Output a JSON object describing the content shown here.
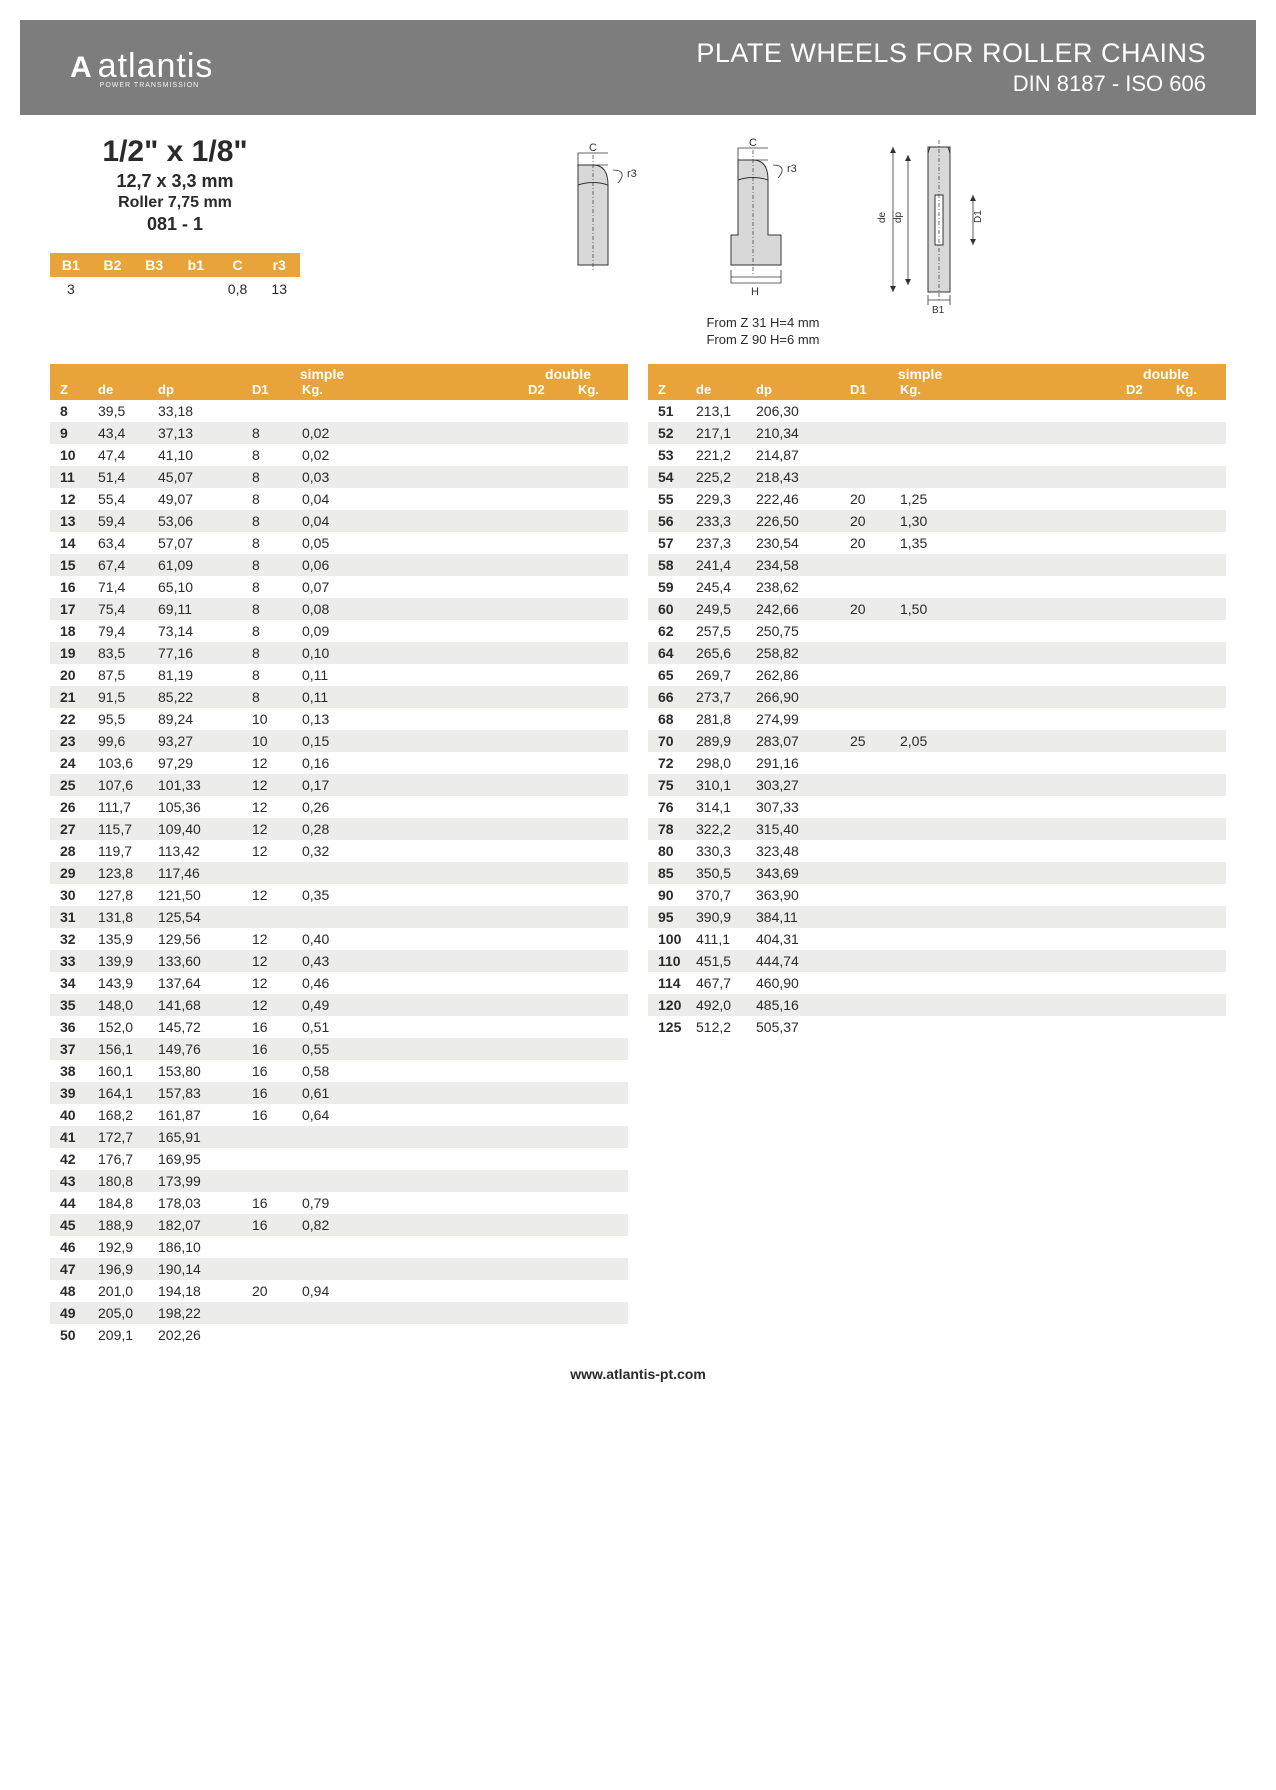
{
  "colors": {
    "header_bg": "#7d7d7d",
    "accent": "#e8a43a",
    "row_alt": "#ececea",
    "text": "#2a2a2a",
    "white": "#ffffff"
  },
  "header": {
    "logo_text": "atlantis",
    "logo_sub": "POWER TRANSMISSION",
    "title_line1": "PLATE WHEELS FOR ROLLER CHAINS",
    "title_line2": "DIN 8187 - ISO 606"
  },
  "spec": {
    "title": "1/2\" x 1/8\"",
    "sub1": "12,7 x 3,3 mm",
    "sub2": "Roller 7,75 mm",
    "sub3": "081 - 1"
  },
  "params": {
    "headers": [
      "B1",
      "B2",
      "B3",
      "b1",
      "C",
      "r3"
    ],
    "values": [
      "3",
      "",
      "",
      "",
      "0,8",
      "13"
    ]
  },
  "diagram_labels": {
    "C": "C",
    "r3": "r3",
    "H": "H",
    "de": "de",
    "dp": "dp",
    "D1": "D1",
    "B1": "B1"
  },
  "diagram_notes": {
    "note1": "From Z 31 H=4 mm",
    "note2": "From Z 90 H=6 mm"
  },
  "table": {
    "headers": {
      "Z": "Z",
      "de": "de",
      "dp": "dp",
      "simple": "simple",
      "double": "double",
      "D1": "D1",
      "Kg": "Kg.",
      "D2": "D2"
    },
    "left_rows": [
      {
        "z": "8",
        "de": "39,5",
        "dp": "33,18",
        "d1": "",
        "kg": ""
      },
      {
        "z": "9",
        "de": "43,4",
        "dp": "37,13",
        "d1": "8",
        "kg": "0,02"
      },
      {
        "z": "10",
        "de": "47,4",
        "dp": "41,10",
        "d1": "8",
        "kg": "0,02"
      },
      {
        "z": "11",
        "de": "51,4",
        "dp": "45,07",
        "d1": "8",
        "kg": "0,03"
      },
      {
        "z": "12",
        "de": "55,4",
        "dp": "49,07",
        "d1": "8",
        "kg": "0,04"
      },
      {
        "z": "13",
        "de": "59,4",
        "dp": "53,06",
        "d1": "8",
        "kg": "0,04"
      },
      {
        "z": "14",
        "de": "63,4",
        "dp": "57,07",
        "d1": "8",
        "kg": "0,05"
      },
      {
        "z": "15",
        "de": "67,4",
        "dp": "61,09",
        "d1": "8",
        "kg": "0,06"
      },
      {
        "z": "16",
        "de": "71,4",
        "dp": "65,10",
        "d1": "8",
        "kg": "0,07"
      },
      {
        "z": "17",
        "de": "75,4",
        "dp": "69,11",
        "d1": "8",
        "kg": "0,08"
      },
      {
        "z": "18",
        "de": "79,4",
        "dp": "73,14",
        "d1": "8",
        "kg": "0,09"
      },
      {
        "z": "19",
        "de": "83,5",
        "dp": "77,16",
        "d1": "8",
        "kg": "0,10"
      },
      {
        "z": "20",
        "de": "87,5",
        "dp": "81,19",
        "d1": "8",
        "kg": "0,11"
      },
      {
        "z": "21",
        "de": "91,5",
        "dp": "85,22",
        "d1": "8",
        "kg": "0,11"
      },
      {
        "z": "22",
        "de": "95,5",
        "dp": "89,24",
        "d1": "10",
        "kg": "0,13"
      },
      {
        "z": "23",
        "de": "99,6",
        "dp": "93,27",
        "d1": "10",
        "kg": "0,15"
      },
      {
        "z": "24",
        "de": "103,6",
        "dp": "97,29",
        "d1": "12",
        "kg": "0,16"
      },
      {
        "z": "25",
        "de": "107,6",
        "dp": "101,33",
        "d1": "12",
        "kg": "0,17"
      },
      {
        "z": "26",
        "de": "111,7",
        "dp": "105,36",
        "d1": "12",
        "kg": "0,26"
      },
      {
        "z": "27",
        "de": "115,7",
        "dp": "109,40",
        "d1": "12",
        "kg": "0,28"
      },
      {
        "z": "28",
        "de": "119,7",
        "dp": "113,42",
        "d1": "12",
        "kg": "0,32"
      },
      {
        "z": "29",
        "de": "123,8",
        "dp": "117,46",
        "d1": "",
        "kg": ""
      },
      {
        "z": "30",
        "de": "127,8",
        "dp": "121,50",
        "d1": "12",
        "kg": "0,35"
      },
      {
        "z": "31",
        "de": "131,8",
        "dp": "125,54",
        "d1": "",
        "kg": ""
      },
      {
        "z": "32",
        "de": "135,9",
        "dp": "129,56",
        "d1": "12",
        "kg": "0,40"
      },
      {
        "z": "33",
        "de": "139,9",
        "dp": "133,60",
        "d1": "12",
        "kg": "0,43"
      },
      {
        "z": "34",
        "de": "143,9",
        "dp": "137,64",
        "d1": "12",
        "kg": "0,46"
      },
      {
        "z": "35",
        "de": "148,0",
        "dp": "141,68",
        "d1": "12",
        "kg": "0,49"
      },
      {
        "z": "36",
        "de": "152,0",
        "dp": "145,72",
        "d1": "16",
        "kg": "0,51"
      },
      {
        "z": "37",
        "de": "156,1",
        "dp": "149,76",
        "d1": "16",
        "kg": "0,55"
      },
      {
        "z": "38",
        "de": "160,1",
        "dp": "153,80",
        "d1": "16",
        "kg": "0,58"
      },
      {
        "z": "39",
        "de": "164,1",
        "dp": "157,83",
        "d1": "16",
        "kg": "0,61"
      },
      {
        "z": "40",
        "de": "168,2",
        "dp": "161,87",
        "d1": "16",
        "kg": "0,64"
      },
      {
        "z": "41",
        "de": "172,7",
        "dp": "165,91",
        "d1": "",
        "kg": ""
      },
      {
        "z": "42",
        "de": "176,7",
        "dp": "169,95",
        "d1": "",
        "kg": ""
      },
      {
        "z": "43",
        "de": "180,8",
        "dp": "173,99",
        "d1": "",
        "kg": ""
      },
      {
        "z": "44",
        "de": "184,8",
        "dp": "178,03",
        "d1": "16",
        "kg": "0,79"
      },
      {
        "z": "45",
        "de": "188,9",
        "dp": "182,07",
        "d1": "16",
        "kg": "0,82"
      },
      {
        "z": "46",
        "de": "192,9",
        "dp": "186,10",
        "d1": "",
        "kg": ""
      },
      {
        "z": "47",
        "de": "196,9",
        "dp": "190,14",
        "d1": "",
        "kg": ""
      },
      {
        "z": "48",
        "de": "201,0",
        "dp": "194,18",
        "d1": "20",
        "kg": "0,94"
      },
      {
        "z": "49",
        "de": "205,0",
        "dp": "198,22",
        "d1": "",
        "kg": ""
      },
      {
        "z": "50",
        "de": "209,1",
        "dp": "202,26",
        "d1": "",
        "kg": ""
      }
    ],
    "right_rows": [
      {
        "z": "51",
        "de": "213,1",
        "dp": "206,30",
        "d1": "",
        "kg": ""
      },
      {
        "z": "52",
        "de": "217,1",
        "dp": "210,34",
        "d1": "",
        "kg": ""
      },
      {
        "z": "53",
        "de": "221,2",
        "dp": "214,87",
        "d1": "",
        "kg": ""
      },
      {
        "z": "54",
        "de": "225,2",
        "dp": "218,43",
        "d1": "",
        "kg": ""
      },
      {
        "z": "55",
        "de": "229,3",
        "dp": "222,46",
        "d1": "20",
        "kg": "1,25"
      },
      {
        "z": "56",
        "de": "233,3",
        "dp": "226,50",
        "d1": "20",
        "kg": "1,30"
      },
      {
        "z": "57",
        "de": "237,3",
        "dp": "230,54",
        "d1": "20",
        "kg": "1,35"
      },
      {
        "z": "58",
        "de": "241,4",
        "dp": "234,58",
        "d1": "",
        "kg": ""
      },
      {
        "z": "59",
        "de": "245,4",
        "dp": "238,62",
        "d1": "",
        "kg": ""
      },
      {
        "z": "60",
        "de": "249,5",
        "dp": "242,66",
        "d1": "20",
        "kg": "1,50"
      },
      {
        "z": "62",
        "de": "257,5",
        "dp": "250,75",
        "d1": "",
        "kg": ""
      },
      {
        "z": "64",
        "de": "265,6",
        "dp": "258,82",
        "d1": "",
        "kg": ""
      },
      {
        "z": "65",
        "de": "269,7",
        "dp": "262,86",
        "d1": "",
        "kg": ""
      },
      {
        "z": "66",
        "de": "273,7",
        "dp": "266,90",
        "d1": "",
        "kg": ""
      },
      {
        "z": "68",
        "de": "281,8",
        "dp": "274,99",
        "d1": "",
        "kg": ""
      },
      {
        "z": "70",
        "de": "289,9",
        "dp": "283,07",
        "d1": "25",
        "kg": "2,05"
      },
      {
        "z": "72",
        "de": "298,0",
        "dp": "291,16",
        "d1": "",
        "kg": ""
      },
      {
        "z": "75",
        "de": "310,1",
        "dp": "303,27",
        "d1": "",
        "kg": ""
      },
      {
        "z": "76",
        "de": "314,1",
        "dp": "307,33",
        "d1": "",
        "kg": ""
      },
      {
        "z": "78",
        "de": "322,2",
        "dp": "315,40",
        "d1": "",
        "kg": ""
      },
      {
        "z": "80",
        "de": "330,3",
        "dp": "323,48",
        "d1": "",
        "kg": ""
      },
      {
        "z": "85",
        "de": "350,5",
        "dp": "343,69",
        "d1": "",
        "kg": ""
      },
      {
        "z": "90",
        "de": "370,7",
        "dp": "363,90",
        "d1": "",
        "kg": ""
      },
      {
        "z": "95",
        "de": "390,9",
        "dp": "384,11",
        "d1": "",
        "kg": ""
      },
      {
        "z": "100",
        "de": "411,1",
        "dp": "404,31",
        "d1": "",
        "kg": ""
      },
      {
        "z": "110",
        "de": "451,5",
        "dp": "444,74",
        "d1": "",
        "kg": ""
      },
      {
        "z": "114",
        "de": "467,7",
        "dp": "460,90",
        "d1": "",
        "kg": ""
      },
      {
        "z": "120",
        "de": "492,0",
        "dp": "485,16",
        "d1": "",
        "kg": ""
      },
      {
        "z": "125",
        "de": "512,2",
        "dp": "505,37",
        "d1": "",
        "kg": ""
      }
    ]
  },
  "footer": {
    "url": "www.atlantis-pt.com"
  }
}
